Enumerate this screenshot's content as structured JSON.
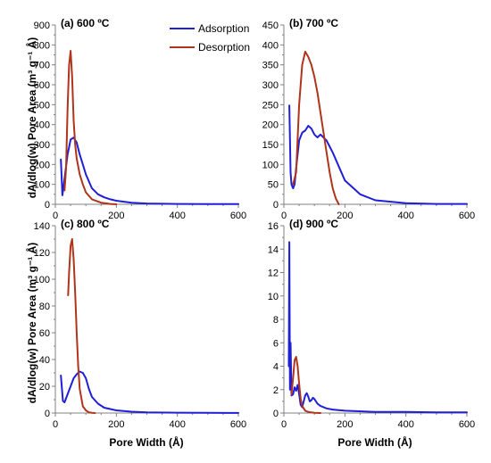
{
  "colors": {
    "adsorption": "#1f1fd6",
    "desorption": "#b0341b",
    "axis": "#808080"
  },
  "axes": {
    "ylabel": "dA/dlog(w) Pore Area (m³ g⁻¹ Å)",
    "xlabel": "Pore Width (Å)"
  },
  "legend": {
    "position": "top-right of panel (a)",
    "items": [
      "Adsorption",
      "Desorption"
    ]
  },
  "chart_data": [
    {
      "type": "line",
      "title": "(a) 600 ºC",
      "xlim": [
        0,
        600
      ],
      "ylim": [
        0,
        900
      ],
      "xticks": [
        0,
        200,
        400,
        600
      ],
      "yticks": [
        0,
        100,
        200,
        300,
        400,
        500,
        600,
        700,
        800,
        900
      ],
      "series": [
        {
          "name": "Adsorption",
          "x": [
            18,
            23,
            30,
            40,
            50,
            60,
            70,
            80,
            90,
            100,
            120,
            140,
            160,
            180,
            200,
            250,
            300,
            400,
            500,
            600
          ],
          "y": [
            225,
            45,
            130,
            250,
            325,
            335,
            310,
            250,
            200,
            150,
            80,
            50,
            35,
            25,
            18,
            8,
            4,
            2,
            1,
            1
          ]
        },
        {
          "name": "Desorption",
          "x": [
            30,
            35,
            40,
            45,
            50,
            55,
            60,
            65,
            70,
            80,
            90,
            100,
            120,
            150,
            180,
            200
          ],
          "y": [
            70,
            180,
            480,
            700,
            770,
            640,
            420,
            300,
            230,
            150,
            100,
            60,
            25,
            8,
            2,
            0
          ]
        }
      ]
    },
    {
      "type": "line",
      "title": "(b) 700 ºC",
      "xlim": [
        0,
        600
      ],
      "ylim": [
        0,
        450
      ],
      "xticks": [
        0,
        200,
        400,
        600
      ],
      "yticks": [
        0,
        50,
        100,
        150,
        200,
        250,
        300,
        350,
        400,
        450
      ],
      "series": [
        {
          "name": "Adsorption",
          "x": [
            18,
            22,
            25,
            30,
            35,
            40,
            50,
            60,
            70,
            80,
            90,
            100,
            110,
            120,
            140,
            160,
            180,
            200,
            250,
            300,
            400,
            500,
            600
          ],
          "y": [
            248,
            80,
            50,
            40,
            50,
            90,
            160,
            180,
            185,
            197,
            190,
            175,
            168,
            175,
            160,
            130,
            95,
            60,
            25,
            10,
            3,
            1,
            1
          ]
        },
        {
          "name": "Desorption",
          "x": [
            30,
            40,
            50,
            60,
            70,
            80,
            90,
            100,
            110,
            120,
            130,
            140,
            150,
            160,
            170,
            180
          ],
          "y": [
            50,
            80,
            250,
            350,
            383,
            370,
            350,
            320,
            280,
            230,
            180,
            130,
            80,
            40,
            15,
            0
          ]
        }
      ]
    },
    {
      "type": "line",
      "title": "(c) 800 ºC",
      "xlim": [
        0,
        600
      ],
      "ylim": [
        0,
        140
      ],
      "xticks": [
        0,
        200,
        400,
        600
      ],
      "yticks": [
        0,
        20,
        40,
        60,
        80,
        100,
        120,
        140
      ],
      "series": [
        {
          "name": "Adsorption",
          "x": [
            18,
            25,
            30,
            40,
            50,
            60,
            70,
            80,
            90,
            100,
            110,
            120,
            140,
            160,
            180,
            200,
            250,
            300,
            400,
            500,
            600
          ],
          "y": [
            28,
            9,
            8,
            14,
            20,
            26,
            29,
            31,
            30,
            26,
            18,
            12,
            7,
            4,
            3,
            2,
            1,
            0.5,
            0.3,
            0.2,
            0.1
          ]
        },
        {
          "name": "Desorption",
          "x": [
            42,
            45,
            50,
            55,
            60,
            65,
            70,
            75,
            80,
            90,
            100,
            110,
            120,
            130
          ],
          "y": [
            88,
            105,
            125,
            130,
            115,
            90,
            60,
            35,
            18,
            5,
            2,
            0.5,
            0.2,
            0
          ]
        }
      ]
    },
    {
      "type": "line",
      "title": "(d) 900 ºC",
      "xlim": [
        0,
        600
      ],
      "ylim": [
        0,
        16
      ],
      "xticks": [
        0,
        200,
        400,
        600
      ],
      "yticks": [
        0,
        2,
        4,
        6,
        8,
        10,
        12,
        14,
        16
      ],
      "series": [
        {
          "name": "Adsorption",
          "x": [
            16,
            18,
            20,
            22,
            25,
            30,
            35,
            40,
            45,
            50,
            55,
            60,
            65,
            70,
            75,
            80,
            85,
            90,
            95,
            100,
            110,
            120,
            140,
            160,
            200,
            300,
            400,
            500,
            600
          ],
          "y": [
            4,
            14.6,
            2,
            6,
            1.5,
            1.6,
            2.2,
            1.9,
            2.4,
            1.6,
            0.7,
            0.5,
            1.0,
            1.5,
            1.7,
            1.4,
            1.0,
            1.1,
            1.3,
            1.2,
            0.8,
            0.6,
            0.4,
            0.3,
            0.2,
            0.1,
            0.1,
            0.05,
            0.05
          ]
        },
        {
          "name": "Desorption",
          "x": [
            25,
            30,
            35,
            40,
            45,
            50,
            55,
            60,
            70,
            80,
            90,
            100,
            120
          ],
          "y": [
            1.6,
            3.0,
            4.5,
            4.8,
            4.0,
            2.5,
            1.2,
            0.6,
            0.2,
            0.1,
            0.05,
            0.02,
            0
          ]
        }
      ]
    }
  ]
}
